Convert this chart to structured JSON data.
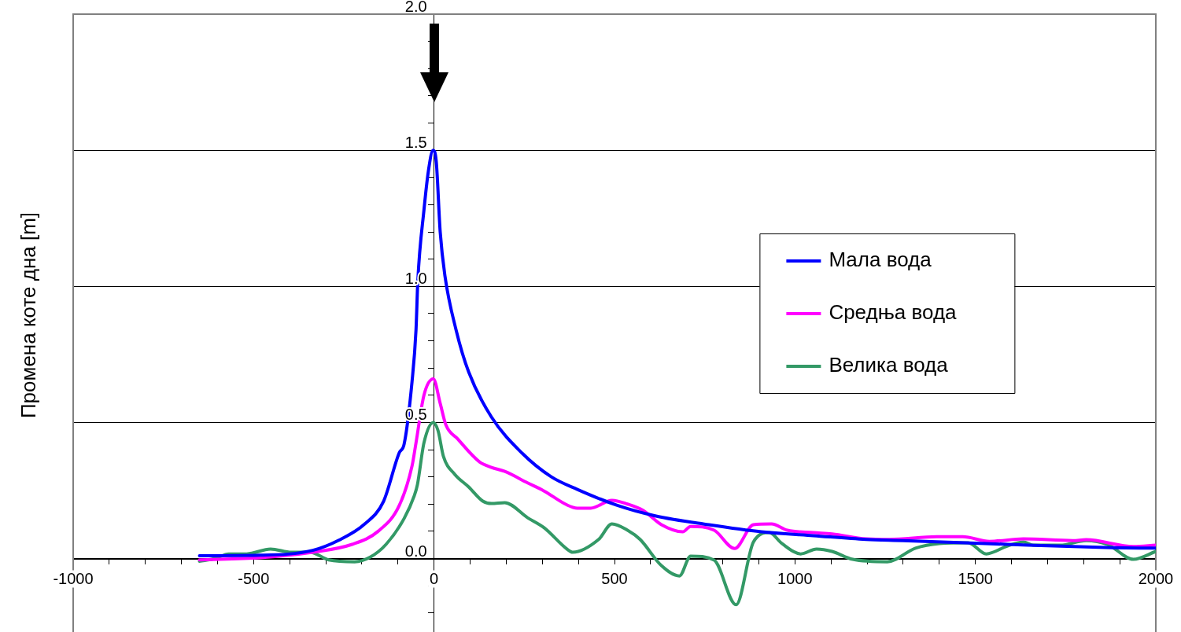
{
  "chart_data": {
    "type": "line",
    "ylabel": "Промена коте дна [m]",
    "xlim": [
      -1000,
      2000
    ],
    "ylim": [
      -0.27,
      2.0
    ],
    "xticks": [
      -1000,
      {
        "value": -900,
        "label": null
      },
      {
        "value": -800,
        "label": null
      },
      {
        "value": -700,
        "label": null
      },
      {
        "value": -600,
        "label": null
      },
      -500,
      {
        "value": -400,
        "label": null
      },
      {
        "value": -300,
        "label": null
      },
      {
        "value": -200,
        "label": null
      },
      {
        "value": -100,
        "label": null
      },
      0,
      {
        "value": 100,
        "label": null
      },
      {
        "value": 200,
        "label": null
      },
      {
        "value": 300,
        "label": null
      },
      {
        "value": 400,
        "label": null
      },
      500,
      {
        "value": 600,
        "label": null
      },
      {
        "value": 700,
        "label": null
      },
      {
        "value": 800,
        "label": null
      },
      {
        "value": 900,
        "label": null
      },
      1000,
      {
        "value": 1100,
        "label": null
      },
      {
        "value": 1200,
        "label": null
      },
      {
        "value": 1300,
        "label": null
      },
      {
        "value": 1400,
        "label": null
      },
      1500,
      {
        "value": 1600,
        "label": null
      },
      {
        "value": 1700,
        "label": null
      },
      {
        "value": 1800,
        "label": null
      },
      {
        "value": 1900,
        "label": null
      },
      2000
    ],
    "yticks": [
      {
        "value": -0.2,
        "label": null
      },
      {
        "value": -0.1,
        "label": null
      },
      {
        "value": 0,
        "label": "0.0"
      },
      {
        "value": 0.1,
        "label": null
      },
      {
        "value": 0.2,
        "label": null
      },
      {
        "value": 0.3,
        "label": null
      },
      {
        "value": 0.4,
        "label": null
      },
      {
        "value": 0.5,
        "label": "0.5"
      },
      {
        "value": 0.6,
        "label": null
      },
      {
        "value": 0.7,
        "label": null
      },
      {
        "value": 0.8,
        "label": null
      },
      {
        "value": 0.9,
        "label": null
      },
      {
        "value": 1.0,
        "label": "1.0"
      },
      {
        "value": 1.1,
        "label": null
      },
      {
        "value": 1.2,
        "label": null
      },
      {
        "value": 1.3,
        "label": null
      },
      {
        "value": 1.4,
        "label": null
      },
      {
        "value": 1.5,
        "label": "1.5"
      },
      {
        "value": 1.6,
        "label": null
      },
      {
        "value": 1.7,
        "label": null
      },
      {
        "value": 1.8,
        "label": null
      },
      {
        "value": 1.9,
        "label": null
      },
      {
        "value": 2.0,
        "label": "2.0"
      }
    ],
    "grid": "y",
    "legend": "right",
    "marker": "none",
    "line_style": "solid",
    "series": [
      {
        "name": "Мала вода",
        "color": "#0000ff",
        "x": [
          -650,
          -482,
          -336,
          -264,
          -192,
          -140,
          -96,
          -83,
          -61,
          -50,
          -45,
          -28,
          -15,
          -3,
          6,
          17,
          30,
          61,
          96,
          159,
          244,
          325,
          397,
          506,
          615,
          761,
          907,
          1051,
          1197,
          1299,
          1589,
          1879,
          2000
        ],
        "values": [
          0.01,
          0.012,
          0.03,
          0.067,
          0.127,
          0.21,
          0.39,
          0.42,
          0.65,
          0.84,
          1.02,
          1.28,
          1.43,
          1.5,
          1.46,
          1.2,
          1.04,
          0.84,
          0.685,
          0.52,
          0.387,
          0.3,
          0.254,
          0.196,
          0.156,
          0.124,
          0.098,
          0.084,
          0.07,
          0.066,
          0.052,
          0.04,
          0.038
        ]
      },
      {
        "name": "Средња вода",
        "color": "#ff00ff",
        "x": [
          -650,
          -482,
          -336,
          -227,
          -155,
          -96,
          -61,
          -50,
          -28,
          -2,
          17,
          33,
          65,
          126,
          159,
          196,
          259,
          305,
          368,
          397,
          434,
          493,
          536,
          580,
          630,
          689,
          711,
          776,
          833,
          885,
          935,
          979,
          1051,
          1103,
          1197,
          1262,
          1393,
          1465,
          1539,
          1633,
          1770,
          1807,
          1938,
          2000
        ],
        "values": [
          -0.005,
          0.003,
          0.023,
          0.052,
          0.1,
          0.196,
          0.34,
          0.425,
          0.6,
          0.66,
          0.57,
          0.49,
          0.44,
          0.355,
          0.335,
          0.32,
          0.278,
          0.248,
          0.197,
          0.185,
          0.185,
          0.214,
          0.2,
          0.176,
          0.124,
          0.098,
          0.118,
          0.104,
          0.037,
          0.124,
          0.127,
          0.104,
          0.095,
          0.09,
          0.072,
          0.07,
          0.08,
          0.08,
          0.063,
          0.072,
          0.066,
          0.069,
          0.044,
          0.049
        ]
      },
      {
        "name": "Велика вода",
        "color": "#339966",
        "x": [
          -650,
          -606,
          -569,
          -519,
          -453,
          -395,
          -344,
          -292,
          -220,
          -177,
          -133,
          -83,
          -55,
          -46,
          -28,
          -2,
          11,
          26,
          57,
          96,
          135,
          159,
          196,
          259,
          305,
          368,
          384,
          456,
          493,
          536,
          571,
          630,
          680,
          711,
          776,
          837,
          885,
          929,
          964,
          1016,
          1060,
          1103,
          1160,
          1256,
          1334,
          1400,
          1480,
          1530,
          1589,
          1633,
          1661,
          1735,
          1807,
          1866,
          1938,
          2000
        ],
        "values": [
          -0.01,
          0.0,
          0.017,
          0.017,
          0.035,
          0.023,
          0.023,
          -0.005,
          -0.012,
          0.005,
          0.052,
          0.147,
          0.23,
          0.272,
          0.425,
          0.5,
          0.47,
          0.375,
          0.31,
          0.263,
          0.211,
          0.202,
          0.205,
          0.15,
          0.113,
          0.035,
          0.023,
          0.07,
          0.127,
          0.104,
          0.07,
          -0.026,
          -0.064,
          0.009,
          -0.006,
          -0.17,
          0.061,
          0.095,
          0.055,
          0.017,
          0.035,
          0.026,
          -0.003,
          -0.012,
          0.038,
          0.055,
          0.058,
          0.017,
          0.046,
          0.061,
          0.049,
          0.049,
          0.066,
          0.052,
          -0.003,
          0.026
        ]
      }
    ]
  }
}
